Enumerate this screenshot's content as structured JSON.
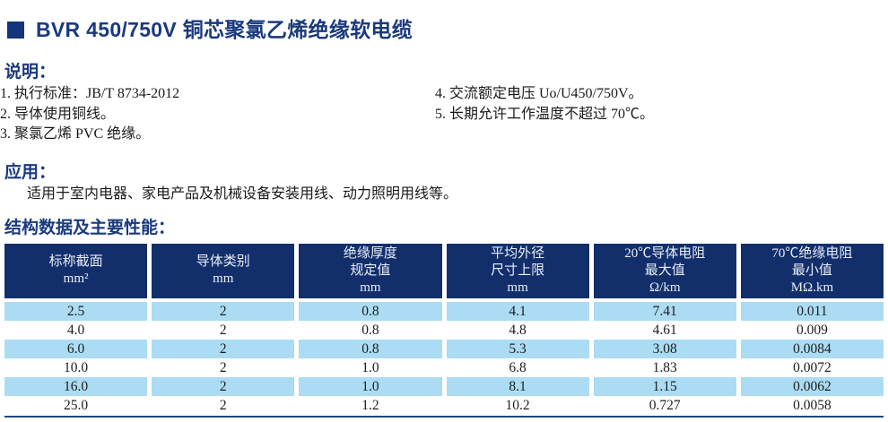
{
  "title": {
    "text": "BVR 450/750V 铜芯聚氯乙烯绝缘软电缆"
  },
  "description": {
    "heading": "说明：",
    "items_left": [
      "1. 执行标准：JB/T 8734-2012",
      "2. 导体使用铜线。",
      "3. 聚氯乙烯 PVC 绝缘。"
    ],
    "items_right": [
      "4. 交流额定电压 Uo/U450/750V。",
      "5. 长期允许工作温度不超过 70℃。"
    ]
  },
  "application": {
    "heading": "应用：",
    "text": "适用于室内电器、家电产品及机械设备安装用线、动力照明用线等。"
  },
  "spec_table": {
    "heading": "结构数据及主要性能：",
    "columns": [
      [
        "标称截面",
        "mm²"
      ],
      [
        "导体类别",
        "mm"
      ],
      [
        "绝缘厚度",
        "规定值",
        "mm"
      ],
      [
        "平均外径",
        "尺寸上限",
        "mm"
      ],
      [
        "20℃导体电阻",
        "最大值",
        "Ω/km"
      ],
      [
        "70℃绝缘电阻",
        "最小值",
        "MΩ.km"
      ]
    ],
    "rows": [
      [
        "2.5",
        "2",
        "0.8",
        "4.1",
        "7.41",
        "0.011"
      ],
      [
        "4.0",
        "2",
        "0.8",
        "4.8",
        "4.61",
        "0.009"
      ],
      [
        "6.0",
        "2",
        "0.8",
        "5.3",
        "3.08",
        "0.0084"
      ],
      [
        "10.0",
        "2",
        "1.0",
        "6.8",
        "1.83",
        "0.0072"
      ],
      [
        "16.0",
        "2",
        "1.0",
        "8.1",
        "1.15",
        "0.0062"
      ],
      [
        "25.0",
        "2",
        "1.2",
        "10.2",
        "0.727",
        "0.0058"
      ]
    ]
  },
  "colors": {
    "heading_navy": "#1a3a7d",
    "table_header_bg": "#132f6b",
    "row_highlight": "#abdcf3",
    "bottom_rule": "#1e4587"
  }
}
